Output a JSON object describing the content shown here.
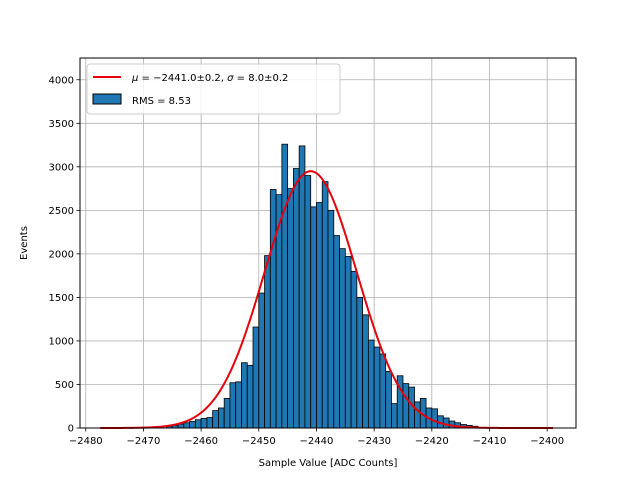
{
  "chart_data": {
    "type": "bar",
    "xlabel": "Sample Value [ADC Counts]",
    "ylabel": "Events",
    "xlim": [
      -2481,
      -2395
    ],
    "ylim": [
      0,
      4250
    ],
    "xticks": [
      -2480,
      -2470,
      -2460,
      -2450,
      -2440,
      -2430,
      -2420,
      -2410,
      -2400
    ],
    "yticks": [
      0,
      500,
      1000,
      1500,
      2000,
      2500,
      3000,
      3500,
      4000
    ],
    "xtick_labels": [
      "−2480",
      "−2470",
      "−2460",
      "−2450",
      "−2440",
      "−2430",
      "−2420",
      "−2410",
      "−2400"
    ],
    "ytick_labels": [
      "0",
      "500",
      "1000",
      "1500",
      "2000",
      "2500",
      "3000",
      "3500",
      "4000"
    ],
    "grid": true,
    "legend_placement": "upper-left",
    "bar_color": "#1f77b4",
    "fit_color": "#e8000b",
    "bin_width": 1,
    "bins": [
      [
        -2466,
        20
      ],
      [
        -2465,
        30
      ],
      [
        -2464,
        45
      ],
      [
        -2463,
        60
      ],
      [
        -2462,
        75
      ],
      [
        -2461,
        95
      ],
      [
        -2460,
        110
      ],
      [
        -2459,
        120
      ],
      [
        -2458,
        200
      ],
      [
        -2457,
        230
      ],
      [
        -2456,
        340
      ],
      [
        -2455,
        520
      ],
      [
        -2454,
        530
      ],
      [
        -2453,
        750
      ],
      [
        -2452,
        720
      ],
      [
        -2451,
        1160
      ],
      [
        -2450,
        1550
      ],
      [
        -2449,
        1980
      ],
      [
        -2448,
        2740
      ],
      [
        -2447,
        2680
      ],
      [
        -2446,
        3260
      ],
      [
        -2445,
        2750
      ],
      [
        -2444,
        2980
      ],
      [
        -2443,
        3240
      ],
      [
        -2442,
        2900
      ],
      [
        -2441,
        2540
      ],
      [
        -2440,
        2590
      ],
      [
        -2439,
        2830
      ],
      [
        -2438,
        2500
      ],
      [
        -2437,
        2210
      ],
      [
        -2436,
        2060
      ],
      [
        -2435,
        1970
      ],
      [
        -2434,
        1800
      ],
      [
        -2433,
        1500
      ],
      [
        -2432,
        1300
      ],
      [
        -2431,
        1010
      ],
      [
        -2430,
        930
      ],
      [
        -2429,
        850
      ],
      [
        -2428,
        650
      ],
      [
        -2427,
        280
      ],
      [
        -2426,
        600
      ],
      [
        -2425,
        510
      ],
      [
        -2424,
        470
      ],
      [
        -2423,
        300
      ],
      [
        -2422,
        340
      ],
      [
        -2421,
        230
      ],
      [
        -2420,
        220
      ],
      [
        -2419,
        140
      ],
      [
        -2418,
        115
      ],
      [
        -2417,
        80
      ],
      [
        -2416,
        60
      ],
      [
        -2415,
        40
      ],
      [
        -2414,
        30
      ],
      [
        -2413,
        20
      ]
    ],
    "fit": {
      "mu": -2441.0,
      "sigma": 8.0,
      "amplitude": 2950,
      "x_range": [
        -2477.5,
        -2399
      ]
    },
    "legend": [
      {
        "kind": "line",
        "label_parts": [
          {
            "text": "μ",
            "italic": true
          },
          {
            "text": " = −2441.0±0.2, ",
            "italic": false
          },
          {
            "text": "σ",
            "italic": true
          },
          {
            "text": " = 8.0±0.2",
            "italic": false
          }
        ]
      },
      {
        "kind": "patch",
        "label": "RMS = 8.53"
      }
    ]
  }
}
